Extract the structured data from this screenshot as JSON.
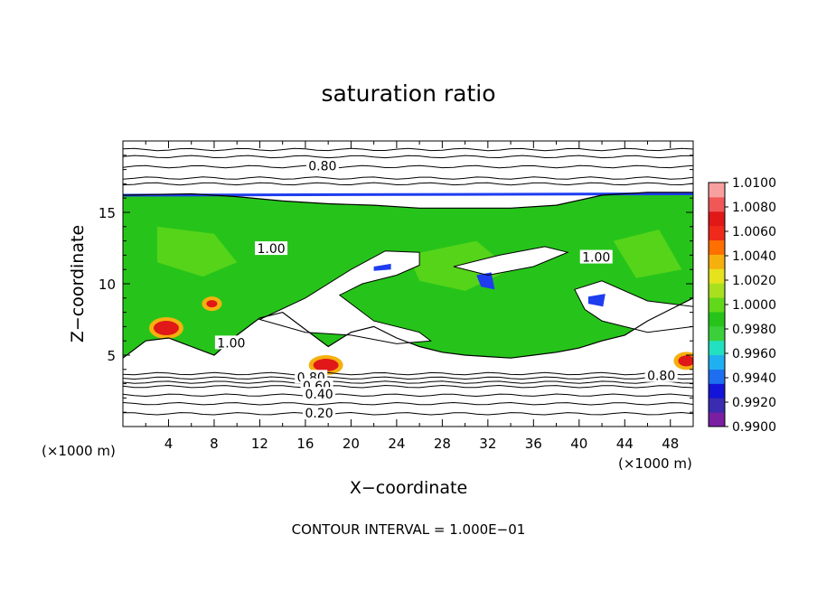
{
  "chart_data": {
    "type": "heatmap",
    "title": "saturation ratio",
    "xlabel": "X−coordinate",
    "ylabel": "Z−coordinate",
    "x_unit": "(×1000 m)",
    "x_unit_right": "(×1000 m)",
    "xlim": [
      0,
      50
    ],
    "ylim": [
      0,
      20
    ],
    "x_ticks": [
      4,
      8,
      12,
      16,
      20,
      24,
      28,
      32,
      36,
      40,
      44,
      48
    ],
    "y_ticks": [
      5,
      10,
      15
    ],
    "footer": "CONTOUR INTERVAL = 1.000E−01",
    "colorbar": {
      "min": 0.99,
      "max": 1.01,
      "labels": [
        "1.0100",
        "1.0080",
        "1.0060",
        "1.0040",
        "1.0020",
        "1.0000",
        "0.9980",
        "0.9960",
        "0.9940",
        "0.9920",
        "0.9900"
      ],
      "colors": [
        "#7a1fa2",
        "#3a2bb0",
        "#1414d8",
        "#1e6ff0",
        "#20b0f0",
        "#22e0c0",
        "#3ccf3c",
        "#26c41a",
        "#62d81a",
        "#a8e020",
        "#e6e21e",
        "#f6b00e",
        "#ff7000",
        "#f02a1a",
        "#e01818",
        "#f05858",
        "#f8a0a0"
      ]
    },
    "contour_labels": [
      {
        "text": "0.80",
        "x": 17.5,
        "y": 18.2
      },
      {
        "text": "1.00",
        "x": 13.0,
        "y": 12.4
      },
      {
        "text": "1.00",
        "x": 41.5,
        "y": 11.8
      },
      {
        "text": "1.00",
        "x": 9.5,
        "y": 5.8
      },
      {
        "text": "0.80",
        "x": 16.5,
        "y": 3.4
      },
      {
        "text": "0.60",
        "x": 17.0,
        "y": 2.8
      },
      {
        "text": "0.40",
        "x": 17.2,
        "y": 2.2
      },
      {
        "text": "0.20",
        "x": 17.2,
        "y": 0.9
      },
      {
        "text": "0.80",
        "x": 47.2,
        "y": 3.5
      }
    ],
    "contour_levels": [
      {
        "level": "0.20",
        "z": 0.9
      },
      {
        "level": "0.40",
        "z": 2.2
      },
      {
        "level": "0.60",
        "z": 2.8
      },
      {
        "level": "0.80",
        "z": 3.4
      },
      {
        "level": "0.80",
        "z": 18.2
      }
    ]
  }
}
